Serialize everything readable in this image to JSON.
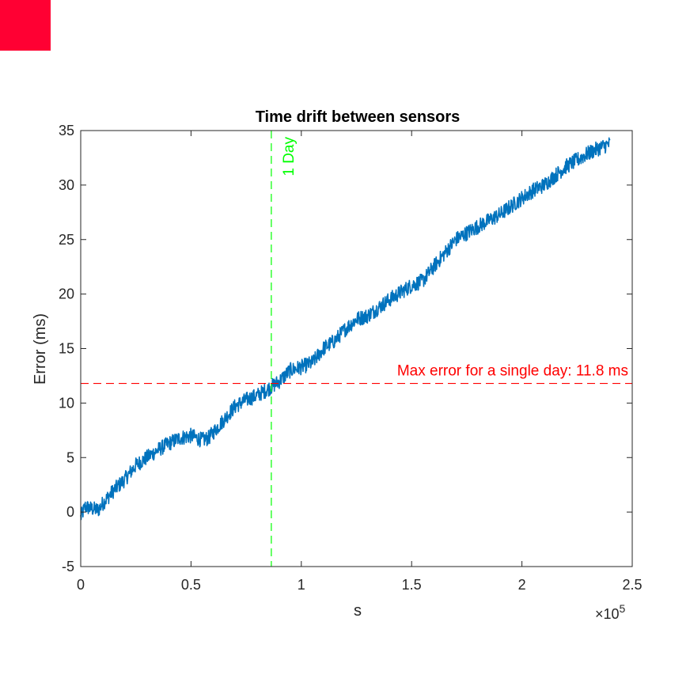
{
  "corner_mark_color": "#ff0033",
  "chart_data": {
    "type": "line",
    "title": "Time drift between sensors",
    "xlabel": "s",
    "ylabel": "Error (ms)",
    "x_exponent": "×10",
    "x_exponent_power": "5",
    "xlim": [
      0,
      2.5
    ],
    "ylim": [
      -5,
      35
    ],
    "x_ticks": [
      0,
      0.5,
      1,
      1.5,
      2,
      2.5
    ],
    "x_tick_labels": [
      "0",
      "0.5",
      "1",
      "1.5",
      "2",
      "2.5"
    ],
    "y_ticks": [
      -5,
      0,
      5,
      10,
      15,
      20,
      25,
      30,
      35
    ],
    "y_tick_labels": [
      "-5",
      "0",
      "5",
      "10",
      "15",
      "20",
      "25",
      "30",
      "35"
    ],
    "grid": false,
    "series": [
      {
        "color": "#0072bd",
        "x": [
          0,
          0.02,
          0.05,
          0.08,
          0.1,
          0.15,
          0.2,
          0.25,
          0.3,
          0.35,
          0.4,
          0.45,
          0.5,
          0.55,
          0.58,
          0.65,
          0.7,
          0.75,
          0.8,
          0.85,
          0.9,
          0.95,
          1.0,
          1.05,
          1.1,
          1.15,
          1.2,
          1.25,
          1.3,
          1.4,
          1.5,
          1.55,
          1.6,
          1.7,
          1.75,
          1.8,
          1.9,
          2.0,
          2.05,
          2.1,
          2.2,
          2.3,
          2.35,
          2.4
        ],
        "y": [
          -0.5,
          0.5,
          0.3,
          0.2,
          0.8,
          2.0,
          3.0,
          4.3,
          5.0,
          5.7,
          6.3,
          6.8,
          7.0,
          6.6,
          6.8,
          8.5,
          9.7,
          10.3,
          10.7,
          11.3,
          12.0,
          13.0,
          13.3,
          13.7,
          15.0,
          15.7,
          16.8,
          17.7,
          18.0,
          19.5,
          20.8,
          21.2,
          22.5,
          25.0,
          25.6,
          26.2,
          27.3,
          28.8,
          29.5,
          30.0,
          31.7,
          32.9,
          33.4,
          33.8
        ],
        "noise_amplitude_ms": 0.7
      }
    ],
    "reference_lines": [
      {
        "orientation": "vertical",
        "x": 0.864,
        "color": "#00ff00",
        "style": "dashed",
        "label": "1 Day"
      },
      {
        "orientation": "horizontal",
        "y": 11.8,
        "color": "#ff0000",
        "style": "dashed",
        "label": "Max error for a single day: 11.8 ms"
      }
    ]
  }
}
